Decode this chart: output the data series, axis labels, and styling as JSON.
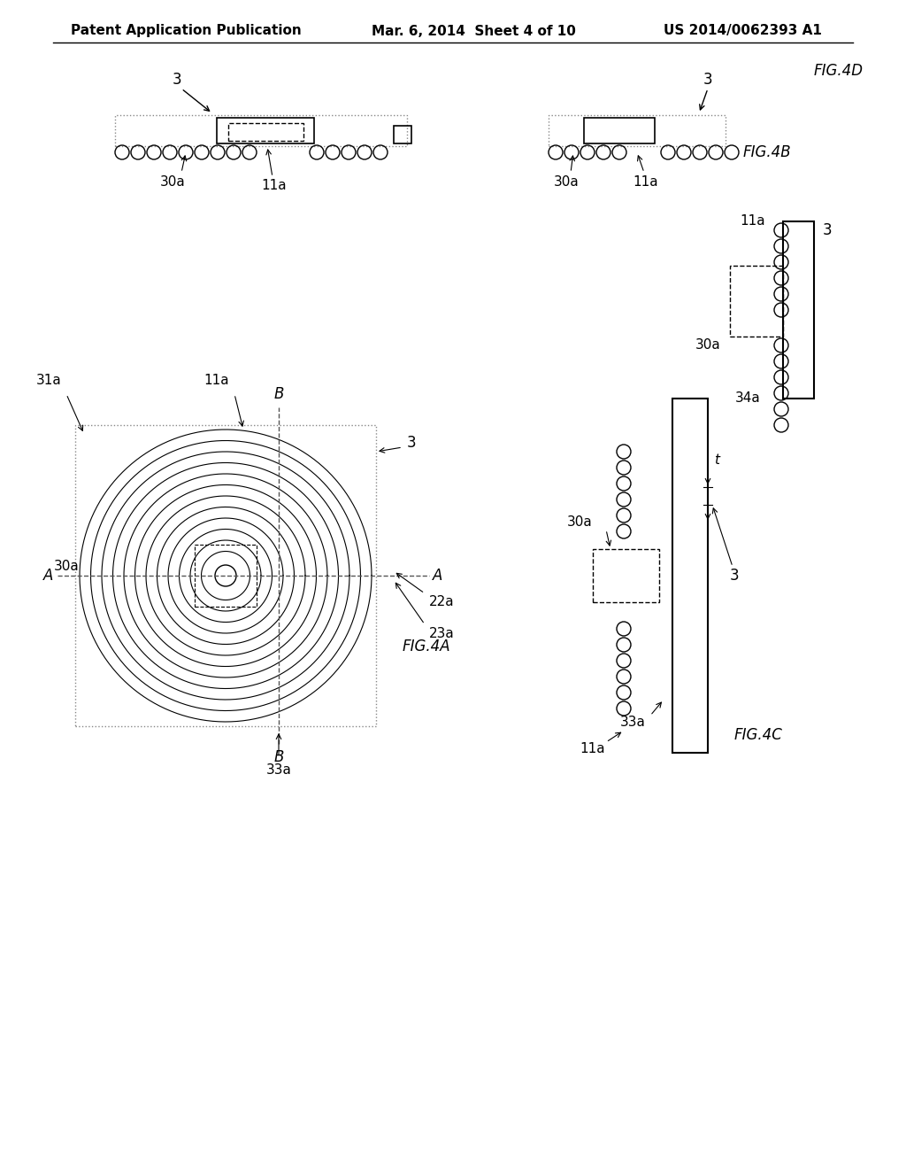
{
  "header_left": "Patent Application Publication",
  "header_mid": "Mar. 6, 2014  Sheet 4 of 10",
  "header_right": "US 2014/0062393 A1",
  "bg_color": "#ffffff",
  "text_color": "#000000"
}
